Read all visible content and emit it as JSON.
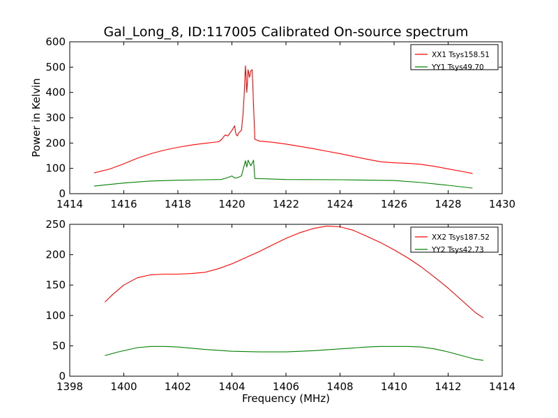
{
  "chart_data": [
    {
      "type": "line",
      "title": "Gal_Long_8, ID:117005 Calibrated On-source spectrum",
      "xlabel": "",
      "ylabel": "Power in Kelvin",
      "xlim": [
        1414,
        1430
      ],
      "ylim": [
        0,
        600
      ],
      "xticks": [
        1414,
        1416,
        1418,
        1420,
        1422,
        1424,
        1426,
        1428,
        1430
      ],
      "yticks": [
        0,
        100,
        200,
        300,
        400,
        500,
        600
      ],
      "grid": false,
      "legend": "top-right",
      "series": [
        {
          "name": "XX1 Tsys158.51",
          "color": "#ff0000",
          "x": [
            1414.9,
            1415.5,
            1416.0,
            1416.5,
            1417.0,
            1417.5,
            1418.0,
            1418.5,
            1419.0,
            1419.5,
            1419.6,
            1419.75,
            1419.85,
            1420.0,
            1420.1,
            1420.15,
            1420.2,
            1420.25,
            1420.3,
            1420.35,
            1420.4,
            1420.45,
            1420.5,
            1420.52,
            1420.55,
            1420.6,
            1420.65,
            1420.7,
            1420.75,
            1420.8,
            1420.85,
            1421.0,
            1421.5,
            1422.0,
            1422.5,
            1423.0,
            1423.5,
            1424.0,
            1424.5,
            1425.0,
            1425.5,
            1426.0,
            1426.5,
            1427.0,
            1427.5,
            1428.0,
            1428.5,
            1428.9
          ],
          "y": [
            82,
            98,
            118,
            140,
            158,
            172,
            183,
            192,
            199,
            205,
            212,
            232,
            228,
            250,
            268,
            235,
            228,
            240,
            245,
            250,
            300,
            380,
            505,
            470,
            400,
            490,
            460,
            485,
            490,
            350,
            215,
            208,
            203,
            196,
            187,
            178,
            168,
            158,
            147,
            136,
            126,
            122,
            120,
            116,
            108,
            98,
            88,
            80
          ]
        },
        {
          "name": "YY1 Tsys49.70",
          "color": "#008000",
          "x": [
            1414.9,
            1416.0,
            1417.0,
            1418.0,
            1419.0,
            1419.6,
            1419.8,
            1420.0,
            1420.1,
            1420.2,
            1420.35,
            1420.5,
            1420.55,
            1420.6,
            1420.7,
            1420.8,
            1420.85,
            1422.0,
            1424.0,
            1426.0,
            1427.0,
            1428.0,
            1428.9
          ],
          "y": [
            30,
            42,
            50,
            53,
            55,
            56,
            62,
            70,
            62,
            63,
            70,
            130,
            105,
            132,
            110,
            132,
            60,
            56,
            55,
            52,
            44,
            33,
            22
          ]
        }
      ]
    },
    {
      "type": "line",
      "title": "",
      "xlabel": "Frequency (MHz)",
      "ylabel": "",
      "xlim": [
        1398,
        1414
      ],
      "ylim": [
        0,
        250
      ],
      "xticks": [
        1398,
        1400,
        1402,
        1404,
        1406,
        1408,
        1410,
        1412,
        1414
      ],
      "yticks": [
        0,
        50,
        100,
        150,
        200,
        250
      ],
      "grid": false,
      "legend": "top-right",
      "series": [
        {
          "name": "XX2 Tsys187.52",
          "color": "#ff0000",
          "x": [
            1399.3,
            1399.6,
            1400.0,
            1400.5,
            1401.0,
            1401.5,
            1402.0,
            1402.5,
            1403.0,
            1403.5,
            1404.0,
            1404.5,
            1405.0,
            1405.5,
            1406.0,
            1406.5,
            1407.0,
            1407.5,
            1408.0,
            1408.5,
            1409.0,
            1409.5,
            1410.0,
            1410.5,
            1411.0,
            1411.5,
            1412.0,
            1412.5,
            1413.0,
            1413.3
          ],
          "y": [
            122,
            135,
            150,
            162,
            167,
            168,
            168,
            169,
            171,
            177,
            185,
            195,
            205,
            216,
            227,
            236,
            243,
            247,
            246,
            240,
            230,
            220,
            208,
            195,
            180,
            163,
            145,
            125,
            105,
            96
          ]
        },
        {
          "name": "YY2 Tsys42.73",
          "color": "#008000",
          "x": [
            1399.3,
            1399.8,
            1400.5,
            1401.0,
            1401.5,
            1402.0,
            1403.0,
            1404.0,
            1405.0,
            1406.0,
            1407.0,
            1408.0,
            1409.0,
            1409.5,
            1410.0,
            1410.5,
            1411.0,
            1411.5,
            1412.0,
            1412.5,
            1413.0,
            1413.3
          ],
          "y": [
            34,
            40,
            47,
            49,
            49,
            48,
            44,
            41,
            40,
            40,
            42,
            45,
            48,
            49,
            49,
            49,
            48,
            45,
            40,
            34,
            28,
            26
          ]
        }
      ]
    }
  ]
}
